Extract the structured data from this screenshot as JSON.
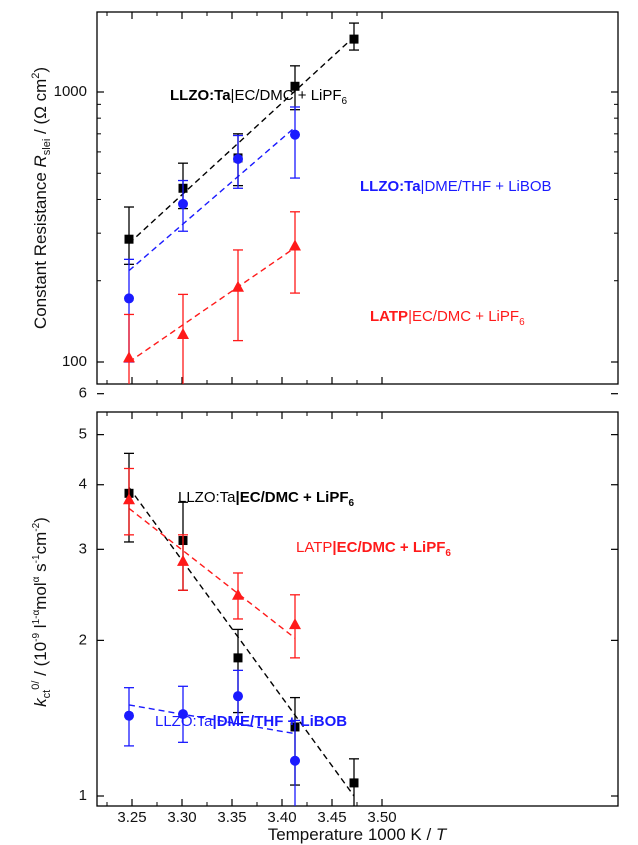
{
  "chart_data": [
    {
      "type": "scatter",
      "title": "",
      "xlabel": "",
      "ylabel_prefix": "Constant Resistance ",
      "ylabel_sym": "R",
      "ylabel_sub": "slei",
      "ylabel_unit_main": " / (Ω cm",
      "ylabel_unit_sup": "2",
      "ylabel_unit_close": ")",
      "y_scale": "log",
      "xlim": [
        3.22,
        3.5
      ],
      "ylim": [
        85,
        1800
      ],
      "ytick_labels": [
        "100",
        "1000"
      ],
      "series": [
        {
          "color": "#000000",
          "marker": "square",
          "x": [
            3.247,
            3.301,
            3.356,
            3.413,
            3.472
          ],
          "y": [
            285,
            440,
            570,
            1050,
            1570
          ],
          "yerr_low": [
            230,
            370,
            450,
            860,
            1430
          ],
          "yerr_high": [
            375,
            545,
            700,
            1250,
            1800
          ],
          "fit": {
            "x": [
              3.247,
              3.472
            ],
            "y": [
              275,
              1600
            ]
          }
        },
        {
          "color": "#1a1aff",
          "marker": "circle",
          "x": [
            3.247,
            3.301,
            3.356,
            3.413
          ],
          "y": [
            172,
            385,
            565,
            695
          ],
          "yerr_low": [
            100,
            305,
            440,
            480
          ],
          "yerr_high": [
            240,
            470,
            690,
            880
          ],
          "fit": {
            "x": [
              3.247,
              3.413
            ],
            "y": [
              218,
              740
            ]
          }
        },
        {
          "color": "#ff1a1a",
          "marker": "triangle",
          "x": [
            3.247,
            3.301,
            3.356,
            3.413
          ],
          "y": [
            104,
            127,
            190,
            270
          ],
          "yerr_low": [
            55,
            80,
            120,
            180
          ],
          "yerr_high": [
            150,
            178,
            260,
            360
          ],
          "fit": {
            "x": [
              3.247,
              3.413
            ],
            "y": [
              100,
              265
            ]
          }
        }
      ],
      "annotations": [
        {
          "bold": "LLZO:Ta",
          "rest": "|EC/DMC + LiPF",
          "sub": "6",
          "color": "#000000"
        },
        {
          "bold": "LLZO:Ta",
          "rest": "|DME/THF + LiBOB",
          "sub": "",
          "color": "#1a1aff"
        },
        {
          "bold": "LATP",
          "rest": "|EC/DMC + LiPF",
          "sub": "6",
          "color": "#ff1a1a"
        }
      ]
    },
    {
      "type": "scatter",
      "title": "",
      "xlabel": "Temperature 1000 K / T",
      "xlabel_main": "Temperature 1000 K / ",
      "xlabel_sym": "T",
      "ylabel_sym": "k",
      "ylabel_sub": "ct",
      "ylabel_sup": "0/",
      "ylabel_unit_a": " / (10",
      "ylabel_unit_a_sup": "-9",
      "ylabel_unit_b": " l",
      "ylabel_unit_b_sup": "1-α",
      "ylabel_unit_c": "mol",
      "ylabel_unit_c_sup": "α",
      "ylabel_unit_d": " s",
      "ylabel_unit_d_sup": "-1",
      "ylabel_unit_e": "cm",
      "ylabel_unit_e_sup": "-2",
      "ylabel_unit_f": ")",
      "y_scale": "log",
      "xlim": [
        3.22,
        3.5
      ],
      "ylim": [
        0.8,
        6.0
      ],
      "xticks": [
        3.25,
        3.3,
        3.35,
        3.4,
        3.45,
        3.5
      ],
      "xtick_labels": [
        "3.25",
        "3.30",
        "3.35",
        "3.40",
        "3.45",
        "3.50"
      ],
      "yticks": [
        1,
        2,
        3,
        4,
        5,
        6
      ],
      "ytick_labels": [
        "1",
        "2",
        "3",
        "4",
        "5",
        "6"
      ],
      "series": [
        {
          "color": "#000000",
          "marker": "square",
          "x": [
            3.247,
            3.301,
            3.356,
            3.413,
            3.472
          ],
          "y": [
            3.85,
            3.12,
            1.85,
            1.36,
            1.06
          ],
          "yerr_low": [
            3.1,
            2.5,
            1.45,
            1.05,
            0.93
          ],
          "yerr_high": [
            4.6,
            3.7,
            2.1,
            1.55,
            1.18
          ],
          "fit": {
            "x": [
              3.247,
              3.472
            ],
            "y": [
              3.95,
              1.0
            ]
          }
        },
        {
          "color": "#ff1a1a",
          "marker": "triangle",
          "x": [
            3.247,
            3.301,
            3.356,
            3.413
          ],
          "y": [
            3.75,
            2.85,
            2.45,
            2.15
          ],
          "yerr_low": [
            3.2,
            2.5,
            2.2,
            1.85
          ],
          "yerr_high": [
            4.3,
            3.2,
            2.7,
            2.45
          ],
          "fit": {
            "x": [
              3.247,
              3.413
            ],
            "y": [
              3.6,
              2.02
            ]
          }
        },
        {
          "color": "#1a1aff",
          "marker": "circle",
          "x": [
            3.247,
            3.301,
            3.356,
            3.413
          ],
          "y": [
            1.43,
            1.44,
            1.56,
            1.17
          ],
          "yerr_low": [
            1.25,
            1.27,
            1.38,
            0.92
          ],
          "yerr_high": [
            1.62,
            1.63,
            1.75,
            1.4
          ],
          "fit": {
            "x": [
              3.247,
              3.413
            ],
            "y": [
              1.5,
              1.32
            ]
          }
        }
      ],
      "annotations": [
        {
          "plain": "LLZO:Ta",
          "bold": "|EC/DMC + LiPF",
          "sub": "6",
          "color": "#000000"
        },
        {
          "plain": "LATP",
          "bold": "|EC/DMC + LiPF",
          "sub": "6",
          "color": "#ff1a1a"
        },
        {
          "plain": "LLZO:Ta",
          "bold": "|DME/THF + LiBOB",
          "sub": "",
          "color": "#1a1aff"
        }
      ]
    }
  ]
}
